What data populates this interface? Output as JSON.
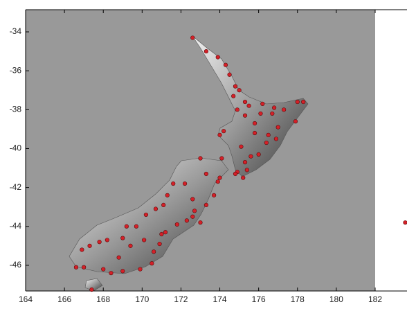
{
  "chart_data": {
    "type": "scatter",
    "x": [
      172.6,
      173.3,
      173.9,
      174.3,
      174.5,
      174.8,
      175.0,
      174.7,
      175.3,
      175.5,
      176.2,
      176.8,
      177.3,
      178.0,
      178.3,
      177.9,
      177.0,
      176.9,
      176.4,
      176.0,
      175.6,
      175.3,
      174.9,
      174.8,
      175.2,
      175.4,
      174.2,
      174.0,
      175.1,
      175.8,
      176.1,
      175.3,
      174.9,
      176.5,
      176.7,
      175.8,
      183.55,
      173.0,
      174.1,
      173.3,
      174.0,
      173.9,
      172.2,
      171.6,
      171.3,
      172.6,
      173.7,
      173.3,
      172.7,
      172.6,
      173.0,
      172.3,
      171.8,
      171.2,
      171.0,
      170.9,
      170.6,
      170.5,
      169.9,
      169.0,
      168.4,
      168.0,
      167.0,
      166.6,
      166.9,
      167.3,
      167.8,
      168.2,
      169.2,
      169.0,
      169.7,
      170.2,
      170.7,
      171.1,
      170.1,
      169.4,
      168.8,
      167.4
    ],
    "values": [
      -34.3,
      -35.0,
      -35.3,
      -35.7,
      -36.2,
      -36.8,
      -37.0,
      -37.3,
      -37.6,
      -37.8,
      -37.7,
      -37.9,
      -38.0,
      -37.6,
      -37.6,
      -38.6,
      -38.9,
      -39.5,
      -39.7,
      -40.3,
      -40.4,
      -40.7,
      -41.2,
      -41.3,
      -41.5,
      -41.1,
      -39.1,
      -39.3,
      -39.9,
      -38.7,
      -38.2,
      -38.3,
      -38.0,
      -39.3,
      -38.2,
      -39.2,
      -43.8,
      -40.5,
      -40.5,
      -41.3,
      -41.5,
      -41.7,
      -41.8,
      -41.8,
      -42.4,
      -42.6,
      -42.4,
      -42.9,
      -43.2,
      -43.5,
      -43.8,
      -43.7,
      -43.9,
      -44.3,
      -44.4,
      -44.9,
      -45.3,
      -45.9,
      -46.2,
      -46.3,
      -46.4,
      -46.2,
      -46.1,
      -46.1,
      -45.2,
      -45.0,
      -44.8,
      -44.7,
      -44.0,
      -44.6,
      -44.0,
      -43.4,
      -43.1,
      -42.9,
      -44.7,
      -45.0,
      -45.6,
      -47.25
    ],
    "color": "#d42028",
    "xlim": [
      164,
      183.64
    ],
    "ylim": [
      -47.32,
      -32.86
    ],
    "xticks": [
      164,
      166,
      168,
      170,
      172,
      174,
      176,
      178,
      180,
      182
    ],
    "yticks": [
      -34,
      -36,
      -38,
      -40,
      -42,
      -44,
      -46
    ]
  }
}
